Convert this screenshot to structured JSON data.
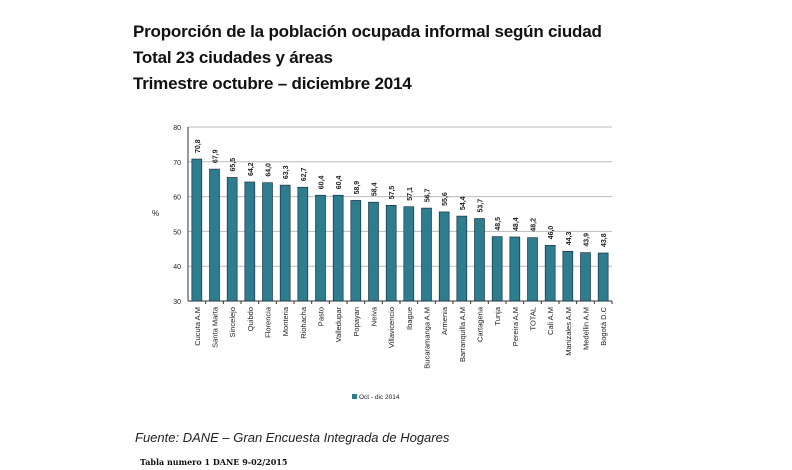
{
  "header": {
    "line1": "Proporción de la población ocupada informal según ciudad",
    "line2": "Total 23 ciudades y áreas",
    "line3": "Trimestre octubre – diciembre 2014"
  },
  "footer": {
    "source": "Fuente: DANE – Gran Encuesta Integrada de Hogares",
    "table_note": "Tabla numero 1 DANE 9-02/2015"
  },
  "chart_data": {
    "type": "bar",
    "title": "",
    "xlabel": "",
    "ylabel": "%",
    "ylim": [
      30,
      80
    ],
    "yticks": [
      30,
      40,
      50,
      60,
      70,
      80
    ],
    "grid": true,
    "legend_position": "bottom",
    "color": "#2e7d8f",
    "categories": [
      "Cucuta A.M",
      "Santa Marta",
      "Sincelejo",
      "Quibdo",
      "Florencia",
      "Monteria",
      "Riohacha",
      "Pasto",
      "Valledupar",
      "Popayan",
      "Neiva",
      "Villavicencio",
      "Ibague",
      "Bucaramanga A.M",
      "Armenia",
      "Barranquilla A.M",
      "Cartagena",
      "Tunja",
      "Pereira A.M",
      "TOTAL",
      "Cali A.M",
      "Manizales A.M",
      "Medellin A.M",
      "Bogotá D.C"
    ],
    "series": [
      {
        "name": "Oct - dic 2014",
        "values": [
          70.8,
          67.9,
          65.5,
          64.2,
          64.0,
          63.3,
          62.7,
          60.4,
          60.4,
          58.9,
          58.4,
          57.5,
          57.1,
          56.7,
          55.6,
          54.4,
          53.7,
          48.5,
          48.4,
          48.2,
          46.0,
          44.3,
          43.9,
          43.8
        ]
      }
    ],
    "data_labels": [
      "70,8",
      "67,9",
      "65,5",
      "64,2",
      "64,0",
      "63,3",
      "62,7",
      "60,4",
      "60,4",
      "58,9",
      "58,4",
      "57,5",
      "57,1",
      "56,7",
      "55,6",
      "54,4",
      "53,7",
      "48,5",
      "48,4",
      "48,2",
      "46,0",
      "44,3",
      "43,9",
      "43,8"
    ]
  }
}
